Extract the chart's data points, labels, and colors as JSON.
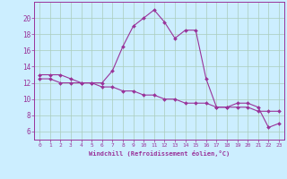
{
  "title": "",
  "xlabel": "Windchill (Refroidissement éolien,°C)",
  "ylabel": "",
  "background_color": "#cceeff",
  "line_color": "#993399",
  "x_values": [
    0,
    1,
    2,
    3,
    4,
    5,
    6,
    7,
    8,
    9,
    10,
    11,
    12,
    13,
    14,
    15,
    16,
    17,
    18,
    19,
    20,
    21,
    22,
    23
  ],
  "y_series1": [
    13,
    13,
    13,
    12.5,
    12,
    12,
    12,
    13.5,
    16.5,
    19,
    20,
    21,
    19.5,
    17.5,
    18.5,
    18.5,
    12.5,
    9,
    9,
    9.5,
    9.5,
    9,
    6.5,
    7
  ],
  "y_series2": [
    12.5,
    12.5,
    12,
    12,
    12,
    12,
    11.5,
    11.5,
    11,
    11,
    10.5,
    10.5,
    10,
    10,
    9.5,
    9.5,
    9.5,
    9,
    9,
    9,
    9,
    8.5,
    8.5,
    8.5
  ],
  "ylim": [
    5,
    22
  ],
  "xlim": [
    -0.5,
    23.5
  ],
  "yticks": [
    6,
    8,
    10,
    12,
    14,
    16,
    18,
    20
  ],
  "xticks": [
    0,
    1,
    2,
    3,
    4,
    5,
    6,
    7,
    8,
    9,
    10,
    11,
    12,
    13,
    14,
    15,
    16,
    17,
    18,
    19,
    20,
    21,
    22,
    23
  ],
  "grid_color": "#aaccbb",
  "font_color": "#993399",
  "figsize": [
    3.2,
    2.0
  ],
  "dpi": 100
}
